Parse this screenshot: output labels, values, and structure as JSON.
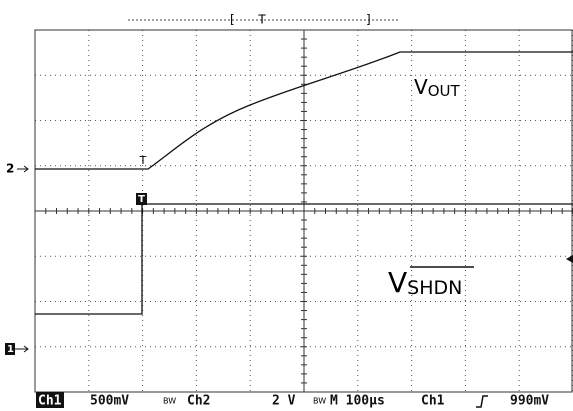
{
  "screen": {
    "top_marker": "T",
    "trace_labels": {
      "ch2_marker": "2",
      "ch1_marker": "1",
      "ch2_trigger": "T",
      "ch1_trigger": "T"
    },
    "signals": {
      "vout": {
        "main": "V",
        "sub": "OUT"
      },
      "vshdn": {
        "main": "V",
        "sub": "SHDN"
      }
    }
  },
  "status_bar": {
    "ch1": "Ch1",
    "ch1_scale": "500mV",
    "ch2": "Ch2",
    "ch2_scale": "2 V",
    "timebase": "M 100µs",
    "trigger_source": "Ch1",
    "trigger_level": "990mV"
  }
}
